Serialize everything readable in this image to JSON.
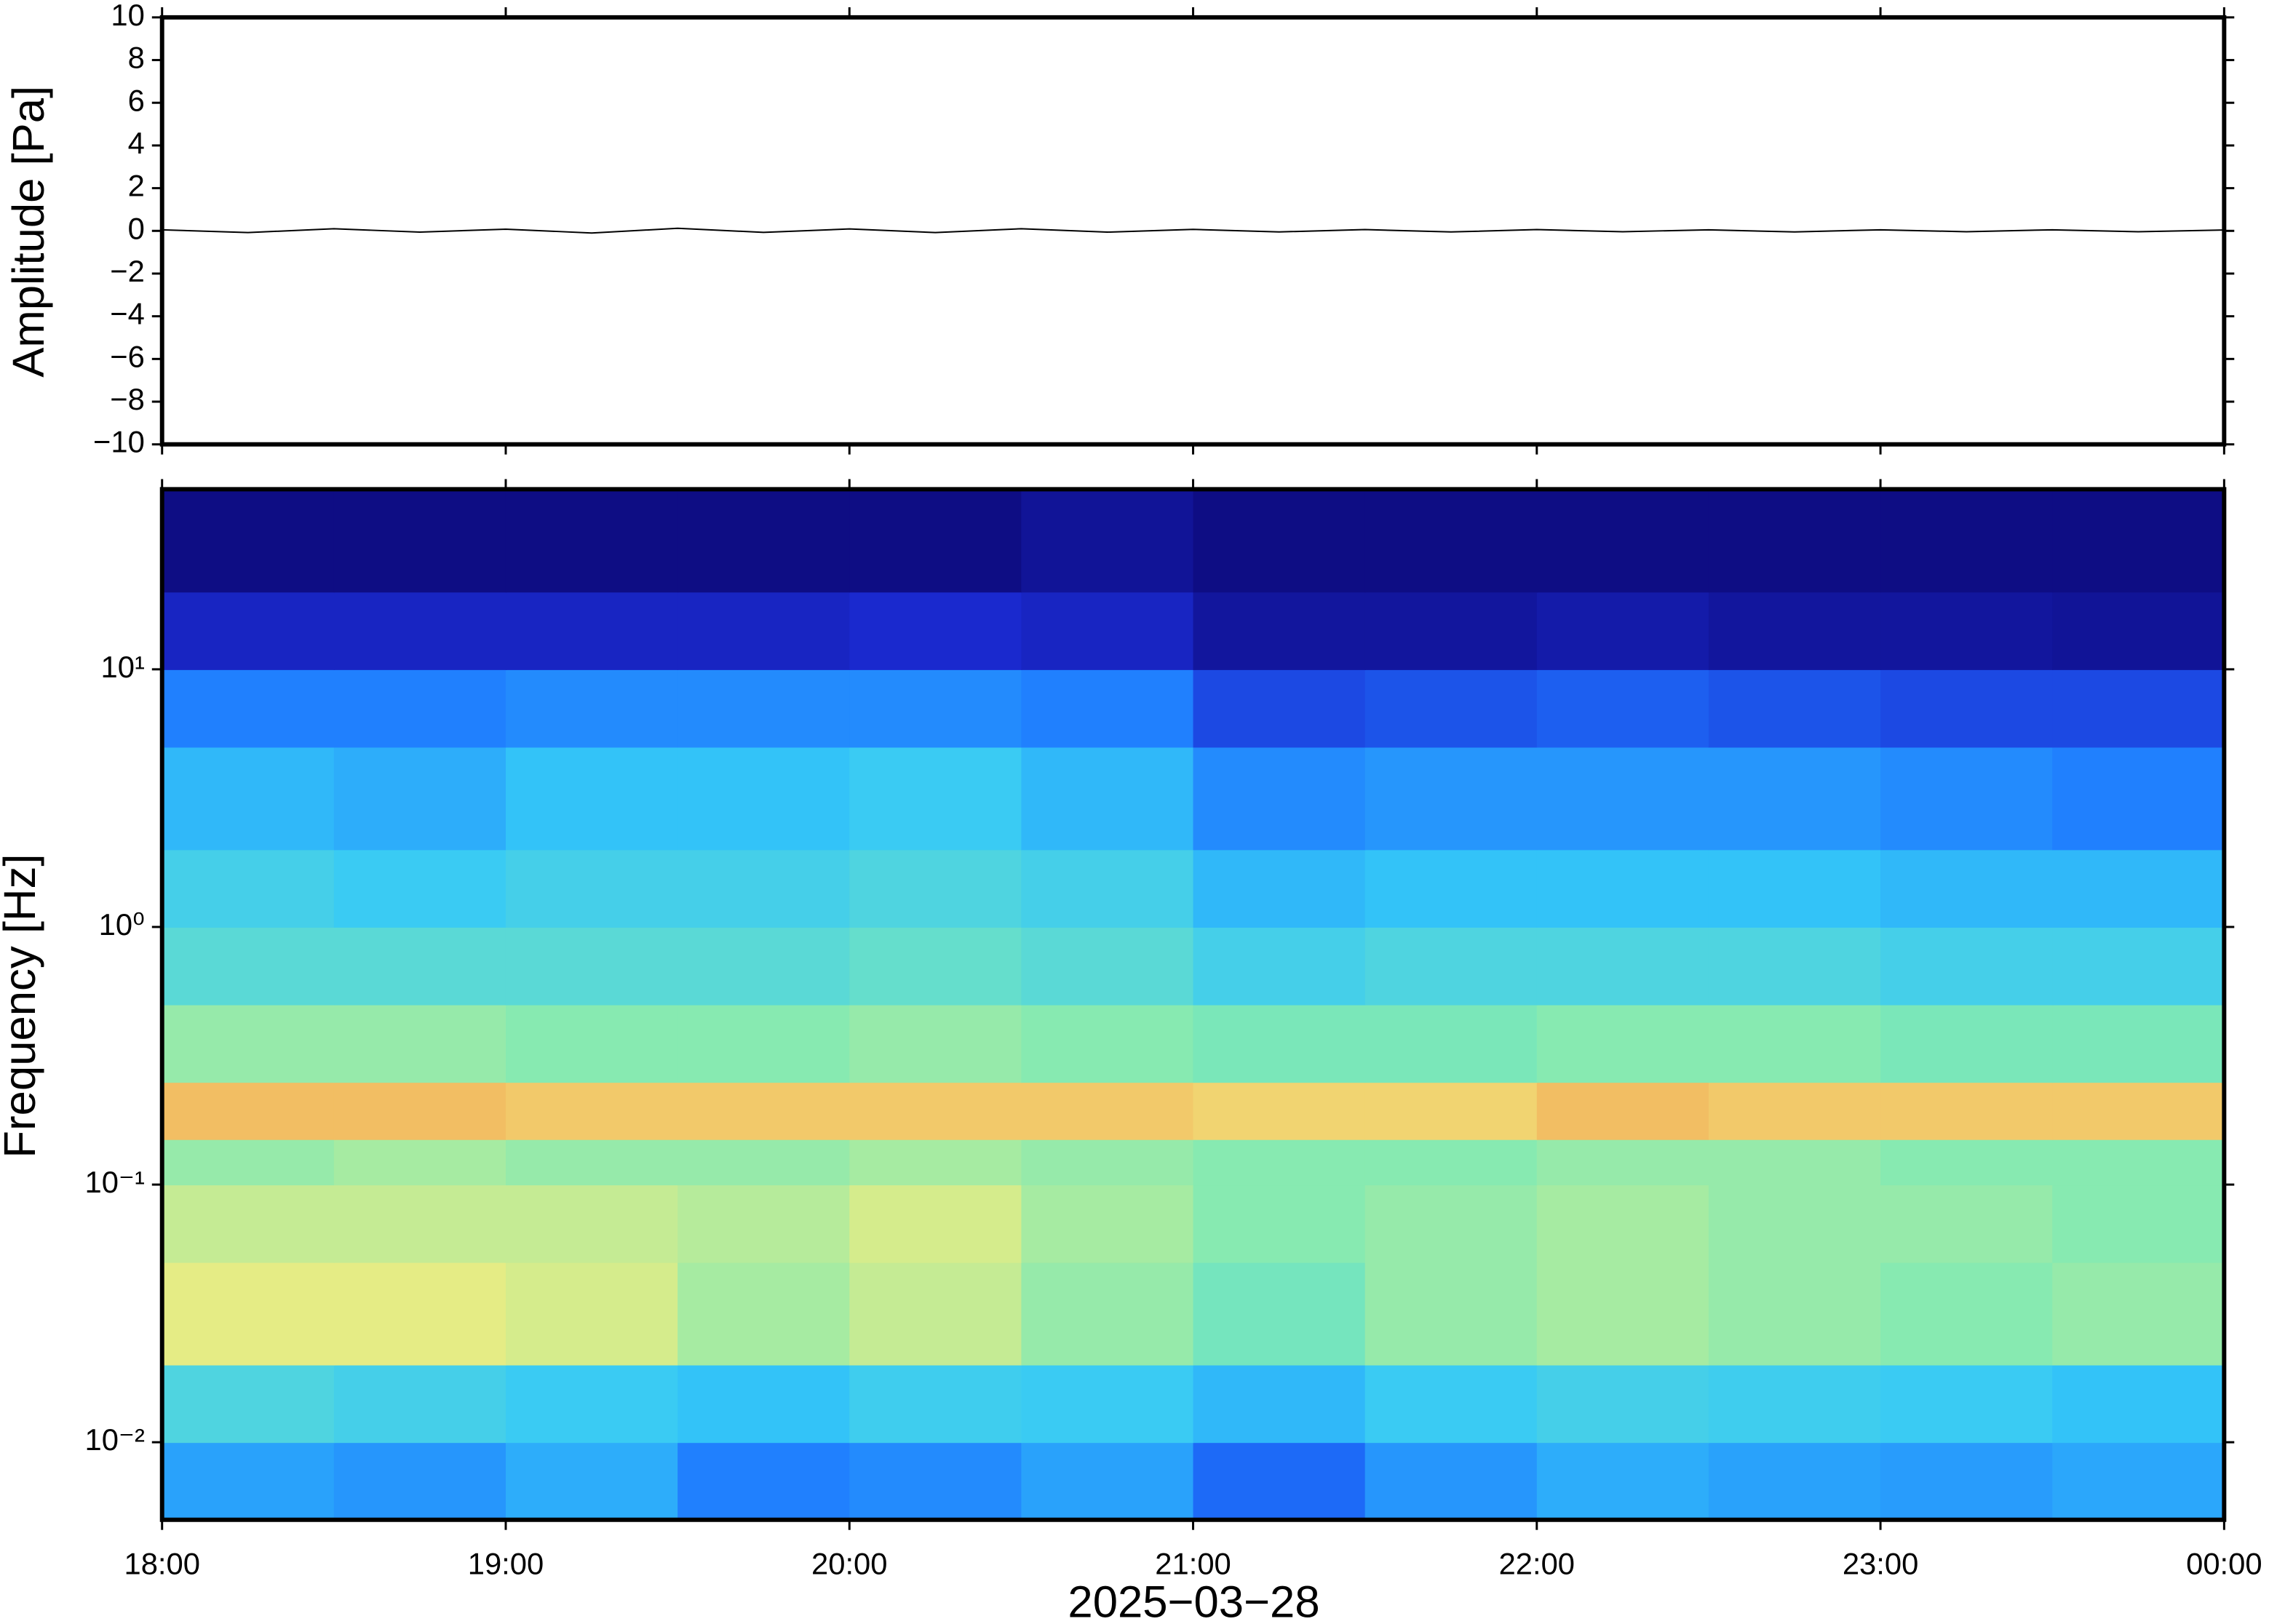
{
  "chart_data": [
    {
      "type": "line",
      "ylabel": "Amplitude [Pa]",
      "x": [
        18,
        18.25,
        18.5,
        18.75,
        19,
        19.25,
        19.5,
        19.75,
        20,
        20.25,
        20.5,
        20.75,
        21,
        21.25,
        21.5,
        21.75,
        22,
        22.25,
        22.5,
        22.75,
        23,
        23.25,
        23.5,
        23.75,
        24
      ],
      "series": [
        {
          "color": "#000000",
          "values": [
            0.05,
            -0.08,
            0.1,
            -0.06,
            0.08,
            -0.1,
            0.12,
            -0.07,
            0.09,
            -0.08,
            0.1,
            -0.06,
            0.07,
            -0.05,
            0.06,
            -0.05,
            0.06,
            -0.04,
            0.05,
            -0.05,
            0.05,
            -0.04,
            0.05,
            -0.04,
            0.04
          ]
        }
      ],
      "xlim": [
        18,
        24
      ],
      "xticks": [
        18,
        19,
        20,
        21,
        22,
        23,
        24
      ],
      "ylim": [
        -10,
        10
      ],
      "yticks": [
        {
          "value": -10,
          "label": "−10"
        },
        {
          "value": -8,
          "label": "−8"
        },
        {
          "value": -6,
          "label": "−6"
        },
        {
          "value": -4,
          "label": "−4"
        },
        {
          "value": -2,
          "label": "−2"
        },
        0,
        2,
        4,
        6,
        8,
        10
      ]
    },
    {
      "type": "heatmap",
      "ylabel": "Frequency [Hz]",
      "xlabel": "2025−03−28",
      "log_y": true,
      "x_edges": [
        18,
        18.5,
        19,
        19.5,
        20,
        20.5,
        21,
        21.5,
        22,
        22.5,
        23,
        23.5,
        24
      ],
      "y_edges": [
        0.005,
        0.01,
        0.02,
        0.05,
        0.1,
        0.15,
        0.25,
        0.5,
        1,
        2,
        5,
        10,
        20,
        50
      ],
      "z": [
        [
          0.36,
          0.34,
          0.38,
          0.3,
          0.32,
          0.36,
          0.26,
          0.34,
          0.38,
          0.36,
          0.35,
          0.37
        ],
        [
          0.48,
          0.46,
          0.44,
          0.42,
          0.45,
          0.44,
          0.4,
          0.44,
          0.46,
          0.45,
          0.44,
          0.42
        ],
        [
          0.7,
          0.7,
          0.68,
          0.62,
          0.66,
          0.6,
          0.55,
          0.6,
          0.62,
          0.6,
          0.58,
          0.6
        ],
        [
          0.66,
          0.66,
          0.66,
          0.64,
          0.68,
          0.62,
          0.58,
          0.6,
          0.62,
          0.6,
          0.6,
          0.58
        ],
        [
          0.6,
          0.62,
          0.6,
          0.6,
          0.62,
          0.6,
          0.58,
          0.58,
          0.6,
          0.6,
          0.58,
          0.58
        ],
        [
          0.8,
          0.8,
          0.78,
          0.78,
          0.78,
          0.78,
          0.76,
          0.76,
          0.8,
          0.78,
          0.78,
          0.78
        ],
        [
          0.6,
          0.6,
          0.58,
          0.58,
          0.6,
          0.58,
          0.56,
          0.56,
          0.58,
          0.58,
          0.56,
          0.56
        ],
        [
          0.5,
          0.5,
          0.5,
          0.5,
          0.52,
          0.5,
          0.46,
          0.48,
          0.48,
          0.48,
          0.46,
          0.46
        ],
        [
          0.46,
          0.44,
          0.46,
          0.46,
          0.48,
          0.46,
          0.4,
          0.42,
          0.42,
          0.42,
          0.4,
          0.4
        ],
        [
          0.4,
          0.38,
          0.42,
          0.42,
          0.44,
          0.4,
          0.32,
          0.34,
          0.34,
          0.34,
          0.32,
          0.3
        ],
        [
          0.3,
          0.3,
          0.32,
          0.32,
          0.32,
          0.3,
          0.2,
          0.22,
          0.24,
          0.22,
          0.2,
          0.2
        ],
        [
          0.12,
          0.12,
          0.12,
          0.12,
          0.14,
          0.12,
          0.06,
          0.06,
          0.08,
          0.06,
          0.06,
          0.05
        ],
        [
          0.02,
          0.02,
          0.02,
          0.02,
          0.02,
          0.05,
          0.02,
          0.02,
          0.02,
          0.02,
          0.02,
          0.02
        ]
      ],
      "colorscale": [
        "#0c0878",
        "#1a2ad0",
        "#1e78ff",
        "#34c8f8",
        "#80eab4",
        "#f0ec80",
        "#f4a050",
        "#e05020"
      ],
      "xlim": [
        18,
        24
      ],
      "xticks": [
        {
          "value": 18,
          "label": "18:00"
        },
        {
          "value": 19,
          "label": "19:00"
        },
        {
          "value": 20,
          "label": "20:00"
        },
        {
          "value": 21,
          "label": "21:00"
        },
        {
          "value": 22,
          "label": "22:00"
        },
        {
          "value": 23,
          "label": "23:00"
        },
        {
          "value": 24,
          "label": "00:00"
        }
      ],
      "ylim": [
        0.005,
        50
      ],
      "yticks": [
        {
          "value": 0.01,
          "label": "10⁻²"
        },
        {
          "value": 0.1,
          "label": "10⁻¹"
        },
        {
          "value": 1,
          "label": "10⁰"
        },
        {
          "value": 10,
          "label": "10¹"
        }
      ]
    }
  ]
}
